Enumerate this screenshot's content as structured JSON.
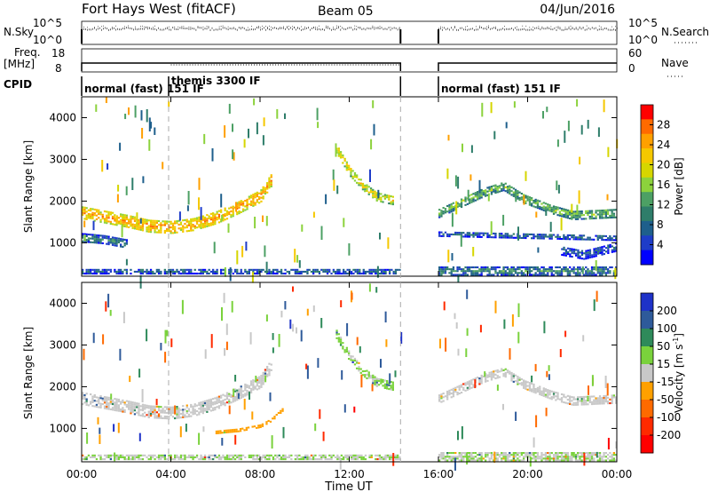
{
  "header": {
    "title": "Fort Hays West (fitACF)",
    "beam": "Beam 05",
    "date": "04/Jun/2016"
  },
  "strips": {
    "nsky_label": "N.Sky",
    "nsky_ticks": [
      "10^5",
      "10^0"
    ],
    "nsearch_label": "N.Search",
    "nsearch_ticks": [
      "10^5",
      "10^0"
    ],
    "freq_label": "Freq.",
    "freq_unit": "[MHz]",
    "freq_ticks": [
      "18",
      "8"
    ],
    "nave_label": "Nave",
    "nave_ticks": [
      "60",
      "0"
    ],
    "cpid_label": "CPID",
    "cpid_segments": [
      {
        "label": "normal (fast) 151 IF",
        "start_h": 0,
        "end_h": 3.9
      },
      {
        "label": "themis 3300 IF",
        "start_h": 3.9,
        "end_h": 14.3
      },
      {
        "label": "normal (fast) 151 IF",
        "start_h": 16.0,
        "end_h": 24
      }
    ],
    "data_gap_h": [
      14.3,
      16.0
    ]
  },
  "x_axis": {
    "label": "Time UT",
    "ticks": [
      "00:00",
      "04:00",
      "08:00",
      "12:00",
      "16:00",
      "20:00",
      "00:00"
    ]
  },
  "power_colorbar": {
    "label": "Power [dB]",
    "ticks": [
      "28",
      "24",
      "20",
      "16",
      "12",
      "8",
      "4"
    ],
    "colors": [
      "#ff0000",
      "#ff6a00",
      "#ffa000",
      "#f5c800",
      "#d6d600",
      "#8cd23c",
      "#4ca064",
      "#2e7d6a",
      "#1e5f8c",
      "#1e3cc8",
      "#0000ff"
    ]
  },
  "velocity_colorbar": {
    "label": "Velocity [m s",
    "label_sup": "-1",
    "label_close": "]",
    "ticks": [
      "200",
      "100",
      "50",
      "15",
      "-15",
      "-50",
      "-100",
      "-200"
    ],
    "colors": [
      "#1e32c8",
      "#2e5a9a",
      "#2e8a5a",
      "#7ad23c",
      "#c8c8c8",
      "#ffa000",
      "#ff6a00",
      "#ff2a00",
      "#ff0000"
    ]
  },
  "chart_data": [
    {
      "type": "heatmap",
      "panel": "power",
      "title": "",
      "xlabel": "Time UT",
      "ylabel": "Slant Range [km]",
      "xlim_hours": [
        0,
        24
      ],
      "ylim_km": [
        200,
        4500
      ],
      "y_ticks": [
        "1000",
        "2000",
        "3000",
        "4000"
      ],
      "colorbar_label": "Power [dB]",
      "color_range_db": [
        0,
        30
      ],
      "echo_bands": [
        {
          "name": "",
          "points": [
            [
              0.0,
              1700
            ],
            [
              1.0,
              1600
            ],
            [
              2.0,
              1500
            ],
            [
              3.0,
              1380
            ],
            [
              4.0,
              1350
            ],
            [
              5.0,
              1420
            ],
            [
              6.0,
              1580
            ],
            [
              7.0,
              1820
            ],
            [
              8.0,
              2100
            ],
            [
              8.5,
              2500
            ]
          ],
          "width_km": 280,
          "power_db": 24
        },
        {
          "name": "",
          "points": [
            [
              11.4,
              3250
            ],
            [
              12.0,
              2700
            ],
            [
              12.6,
              2350
            ],
            [
              13.2,
              2100
            ],
            [
              14.0,
              2000
            ]
          ],
          "width_km": 220,
          "power_db": 20
        },
        {
          "name": "",
          "points": [
            [
              16.0,
              1700
            ],
            [
              17.0,
              1950
            ],
            [
              18.0,
              2200
            ],
            [
              18.9,
              2350
            ],
            [
              19.8,
              2050
            ],
            [
              21.0,
              1800
            ],
            [
              22.0,
              1650
            ],
            [
              24.0,
              1700
            ]
          ],
          "width_km": 220,
          "power_db": 14
        },
        {
          "name": "",
          "points": [
            [
              0.0,
              1100
            ],
            [
              1.0,
              1050
            ],
            [
              2.0,
              950
            ]
          ],
          "width_km": 180,
          "power_db": 10
        },
        {
          "name": "",
          "points": [
            [
              16.0,
              1200
            ],
            [
              20.0,
              1150
            ],
            [
              24.0,
              1100
            ]
          ],
          "width_km": 120,
          "power_db": 8
        },
        {
          "name": "",
          "points": [
            [
              21.5,
              800
            ],
            [
              22.5,
              700
            ],
            [
              24.0,
              900
            ]
          ],
          "width_km": 220,
          "power_db": 6
        },
        {
          "name": "",
          "points": [
            [
              0.0,
              300
            ],
            [
              14.3,
              300
            ]
          ],
          "width_km": 120,
          "power_db": 8
        },
        {
          "name": "",
          "points": [
            [
              16.0,
              300
            ],
            [
              24.0,
              300
            ]
          ],
          "width_km": 180,
          "power_db": 10
        }
      ]
    },
    {
      "type": "heatmap",
      "panel": "velocity",
      "title": "",
      "xlabel": "Time UT",
      "ylabel": "Slant Range [km]",
      "xlim_hours": [
        0,
        24
      ],
      "ylim_km": [
        200,
        4500
      ],
      "y_ticks": [
        "1000",
        "2000",
        "3000",
        "4000"
      ],
      "colorbar_label": "Velocity [m s-1]",
      "color_range_ms": [
        -250,
        250
      ],
      "echo_bands": [
        {
          "name": "",
          "points": [
            [
              0.0,
              1700
            ],
            [
              1.0,
              1600
            ],
            [
              2.0,
              1500
            ],
            [
              3.0,
              1380
            ],
            [
              4.0,
              1350
            ],
            [
              5.0,
              1420
            ],
            [
              6.0,
              1580
            ],
            [
              7.0,
              1820
            ],
            [
              8.0,
              2100
            ],
            [
              8.5,
              2500
            ]
          ],
          "width_km": 280,
          "velocity_ms": 0
        },
        {
          "name": "",
          "points": [
            [
              6.0,
              900
            ],
            [
              7.0,
              950
            ],
            [
              8.0,
              1050
            ],
            [
              8.5,
              1200
            ],
            [
              9.0,
              1450
            ]
          ],
          "width_km": 80,
          "velocity_ms": -60
        },
        {
          "name": "",
          "points": [
            [
              11.4,
              3250
            ],
            [
              12.0,
              2700
            ],
            [
              12.6,
              2350
            ],
            [
              13.2,
              2100
            ],
            [
              14.0,
              2000
            ]
          ],
          "width_km": 220,
          "velocity_ms": 40
        },
        {
          "name": "",
          "points": [
            [
              16.0,
              1700
            ],
            [
              17.0,
              1950
            ],
            [
              18.0,
              2200
            ],
            [
              18.9,
              2350
            ],
            [
              19.8,
              2050
            ],
            [
              21.0,
              1800
            ],
            [
              22.0,
              1650
            ],
            [
              24.0,
              1700
            ]
          ],
          "width_km": 220,
          "velocity_ms": 0
        },
        {
          "name": "",
          "points": [
            [
              0.0,
              300
            ],
            [
              14.3,
              300
            ]
          ],
          "width_km": 120,
          "velocity_ms": 30
        },
        {
          "name": "",
          "points": [
            [
              16.0,
              300
            ],
            [
              24.0,
              300
            ]
          ],
          "width_km": 180,
          "velocity_ms": 30
        }
      ]
    }
  ]
}
